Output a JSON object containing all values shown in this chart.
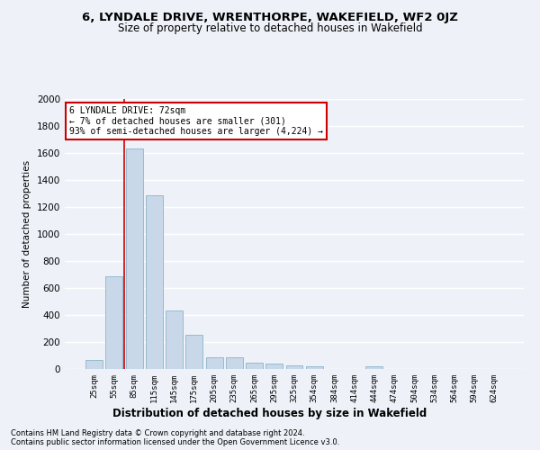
{
  "title": "6, LYNDALE DRIVE, WRENTHORPE, WAKEFIELD, WF2 0JZ",
  "subtitle": "Size of property relative to detached houses in Wakefield",
  "xlabel": "Distribution of detached houses by size in Wakefield",
  "ylabel": "Number of detached properties",
  "bar_color": "#c8d8e8",
  "bar_edge_color": "#8ab4cc",
  "categories": [
    "25sqm",
    "55sqm",
    "85sqm",
    "115sqm",
    "145sqm",
    "175sqm",
    "205sqm",
    "235sqm",
    "265sqm",
    "295sqm",
    "325sqm",
    "354sqm",
    "384sqm",
    "414sqm",
    "444sqm",
    "474sqm",
    "504sqm",
    "534sqm",
    "564sqm",
    "594sqm",
    "624sqm"
  ],
  "values": [
    65,
    690,
    1635,
    1285,
    435,
    255,
    90,
    85,
    50,
    40,
    28,
    20,
    0,
    0,
    20,
    0,
    0,
    0,
    0,
    0,
    0
  ],
  "vline_color": "#cc0000",
  "vline_x_index": 1.5,
  "annotation_line1": "6 LYNDALE DRIVE: 72sqm",
  "annotation_line2": "← 7% of detached houses are smaller (301)",
  "annotation_line3": "93% of semi-detached houses are larger (4,224) →",
  "annotation_box_color": "white",
  "annotation_box_edge_color": "#cc0000",
  "ylim": [
    0,
    2000
  ],
  "yticks": [
    0,
    200,
    400,
    600,
    800,
    1000,
    1200,
    1400,
    1600,
    1800,
    2000
  ],
  "footnote1": "Contains HM Land Registry data © Crown copyright and database right 2024.",
  "footnote2": "Contains public sector information licensed under the Open Government Licence v3.0.",
  "background_color": "#eef2f8",
  "grid_color": "white"
}
